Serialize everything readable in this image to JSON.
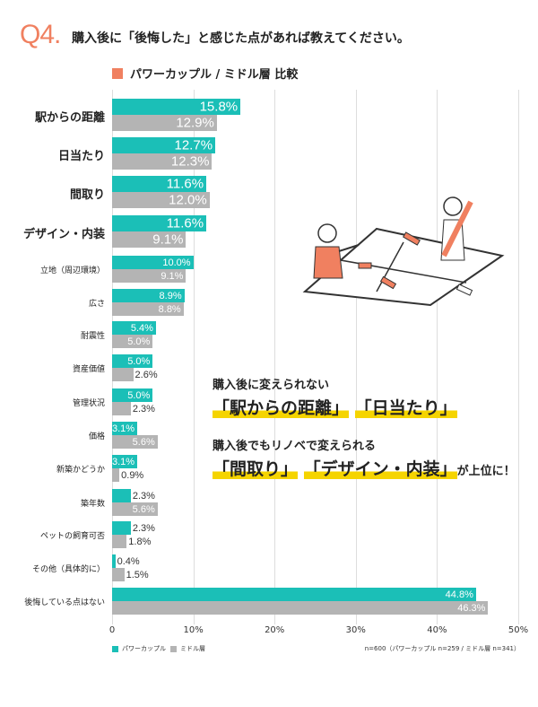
{
  "header": {
    "q": "Q4.",
    "title": "購入後に「後悔した」と感じた点があれば教えてください。",
    "subtitle": "パワーカップル / ミドル層 比較"
  },
  "colors": {
    "accent": "#f08060",
    "power": "#1bbfb7",
    "middle": "#b4b4b4"
  },
  "annotation": {
    "line1": "購入後に変えられない",
    "hl1a": "「駅からの距離」",
    "hl1b": "「日当たり」",
    "line2": "購入後でもリノベで変えられる",
    "hl2a": "「間取り」",
    "hl2b": "「デザイン・内装」",
    "tail": "が上位に！"
  },
  "chart_data": {
    "type": "bar",
    "orientation": "horizontal",
    "categories": [
      "駅からの距離",
      "日当たり",
      "間取り",
      "デザイン・内装",
      "立地（周辺環境）",
      "広さ",
      "耐震性",
      "資産価値",
      "管理状況",
      "価格",
      "新築かどうか",
      "築年数",
      "ペットの飼育可否",
      "その他（具体的に）",
      "後悔している点はない"
    ],
    "series": [
      {
        "name": "パワーカップル",
        "values": [
          15.8,
          12.7,
          11.6,
          11.6,
          10.0,
          8.9,
          5.4,
          5.0,
          5.0,
          3.1,
          3.1,
          2.3,
          2.3,
          0.4,
          44.8
        ]
      },
      {
        "name": "ミドル層",
        "values": [
          12.9,
          12.3,
          12.0,
          9.1,
          9.1,
          8.8,
          5.0,
          2.6,
          2.3,
          5.6,
          0.9,
          5.6,
          1.8,
          1.5,
          46.3
        ]
      }
    ],
    "xlim": [
      0,
      50
    ],
    "xticks": [
      "0",
      "10%",
      "20%",
      "30%",
      "40%",
      "50%"
    ],
    "legend": "bottom-left",
    "grid": true,
    "note": "n=600（パワーカップル n=259 / ミドル層 n=341）"
  }
}
